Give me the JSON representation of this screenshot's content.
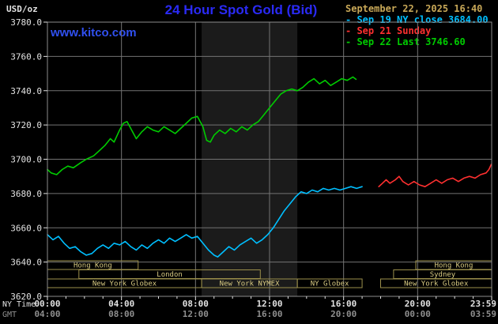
{
  "header": {
    "units": "USD/oz",
    "title": "24 Hour Spot Gold (Bid)",
    "website": "www.kitco.com",
    "datetime": "September 22, 2025 16:40"
  },
  "legend": [
    {
      "id": "sep19",
      "label": "- Sep 19 NY close 3684.00",
      "color": "#00bfff"
    },
    {
      "id": "sep21",
      "label": "- Sep 21 Sunday",
      "color": "#ff3030"
    },
    {
      "id": "sep22",
      "label": "- Sep 22 Last 3746.60",
      "color": "#00cc00"
    }
  ],
  "axes": {
    "ny_label": "NY Time",
    "gmt_label": "GMT",
    "tick_hours": [
      0,
      4,
      8,
      12,
      16,
      20,
      24
    ],
    "ny_ticks": [
      "00:00",
      "04:00",
      "08:00",
      "12:00",
      "16:00",
      "20:00",
      "23:59"
    ],
    "gmt_ticks": [
      "04:00",
      "08:00",
      "12:00",
      "16:00",
      "20:00",
      "00:00",
      "03:59"
    ]
  },
  "colors": {
    "background": "#000000",
    "grid": "#737373",
    "border": "#8c8c8c",
    "axis_text": "#e2e2e2",
    "gmt_text": "#8f8f8f",
    "band_fill": "#1b1b1b",
    "session_border": "#9b8f4b",
    "session_text": "#d8ca82",
    "title_blue": "#2a2af5",
    "kitco_blue": "#3050f0",
    "date_tan": "#c8a858"
  },
  "chart_data": {
    "type": "line",
    "title": "24 Hour Spot Gold (Bid)",
    "ylabel": "USD/oz",
    "ylim": [
      3620,
      3780
    ],
    "y_ticks": [
      3780,
      3760,
      3740,
      3720,
      3700,
      3680,
      3660,
      3640,
      3620
    ],
    "x_grid_hours": [
      4,
      8,
      12,
      16,
      20
    ],
    "highlight_band": {
      "start_hour": 8.33,
      "end_hour": 13.5
    },
    "series": [
      {
        "id": "sep19",
        "name": "Sep 19 NY close 3684.00",
        "color": "#00bfff",
        "points": [
          [
            0,
            3656
          ],
          [
            0.3,
            3653
          ],
          [
            0.6,
            3655
          ],
          [
            0.9,
            3651
          ],
          [
            1.2,
            3648
          ],
          [
            1.5,
            3649
          ],
          [
            1.8,
            3646
          ],
          [
            2.1,
            3644
          ],
          [
            2.4,
            3645
          ],
          [
            2.7,
            3648
          ],
          [
            3,
            3650
          ],
          [
            3.3,
            3648
          ],
          [
            3.6,
            3651
          ],
          [
            3.9,
            3650
          ],
          [
            4.2,
            3652
          ],
          [
            4.5,
            3649
          ],
          [
            4.8,
            3647
          ],
          [
            5.1,
            3650
          ],
          [
            5.4,
            3648
          ],
          [
            5.7,
            3651
          ],
          [
            6,
            3653
          ],
          [
            6.3,
            3651
          ],
          [
            6.6,
            3654
          ],
          [
            6.9,
            3652
          ],
          [
            7.2,
            3654
          ],
          [
            7.5,
            3656
          ],
          [
            7.8,
            3654
          ],
          [
            8.1,
            3655
          ],
          [
            8.4,
            3651
          ],
          [
            8.7,
            3647
          ],
          [
            9,
            3644
          ],
          [
            9.2,
            3643
          ],
          [
            9.5,
            3646
          ],
          [
            9.8,
            3649
          ],
          [
            10.1,
            3647
          ],
          [
            10.4,
            3650
          ],
          [
            10.7,
            3652
          ],
          [
            11,
            3654
          ],
          [
            11.3,
            3651
          ],
          [
            11.6,
            3653
          ],
          [
            11.9,
            3656
          ],
          [
            12.2,
            3660
          ],
          [
            12.5,
            3665
          ],
          [
            12.8,
            3670
          ],
          [
            13.1,
            3674
          ],
          [
            13.4,
            3678
          ],
          [
            13.7,
            3681
          ],
          [
            14,
            3680
          ],
          [
            14.3,
            3682
          ],
          [
            14.6,
            3681
          ],
          [
            14.9,
            3683
          ],
          [
            15.2,
            3682
          ],
          [
            15.5,
            3683
          ],
          [
            15.8,
            3682
          ],
          [
            16.1,
            3683
          ],
          [
            16.4,
            3684
          ],
          [
            16.7,
            3683
          ],
          [
            17,
            3684
          ]
        ]
      },
      {
        "id": "sep21",
        "name": "Sep 21 Sunday",
        "color": "#ff3030",
        "points": [
          [
            17.9,
            3684
          ],
          [
            18.1,
            3686
          ],
          [
            18.3,
            3688
          ],
          [
            18.5,
            3686
          ],
          [
            18.8,
            3688
          ],
          [
            19,
            3690
          ],
          [
            19.2,
            3687
          ],
          [
            19.5,
            3685
          ],
          [
            19.8,
            3687
          ],
          [
            20.1,
            3685
          ],
          [
            20.4,
            3684
          ],
          [
            20.7,
            3686
          ],
          [
            21,
            3688
          ],
          [
            21.3,
            3686
          ],
          [
            21.6,
            3688
          ],
          [
            21.9,
            3689
          ],
          [
            22.2,
            3687
          ],
          [
            22.5,
            3689
          ],
          [
            22.8,
            3690
          ],
          [
            23.1,
            3689
          ],
          [
            23.4,
            3691
          ],
          [
            23.7,
            3692
          ],
          [
            23.85,
            3694
          ],
          [
            23.98,
            3697
          ]
        ]
      },
      {
        "id": "sep22",
        "name": "Sep 22 Last 3746.60",
        "color": "#00cc00",
        "points": [
          [
            0,
            3694
          ],
          [
            0.2,
            3692
          ],
          [
            0.5,
            3691
          ],
          [
            0.8,
            3694
          ],
          [
            1.1,
            3696
          ],
          [
            1.4,
            3695
          ],
          [
            1.8,
            3698
          ],
          [
            2.1,
            3700
          ],
          [
            2.5,
            3702
          ],
          [
            2.8,
            3705
          ],
          [
            3.1,
            3708
          ],
          [
            3.4,
            3712
          ],
          [
            3.6,
            3710
          ],
          [
            3.9,
            3717
          ],
          [
            4.1,
            3721
          ],
          [
            4.3,
            3722
          ],
          [
            4.6,
            3716
          ],
          [
            4.8,
            3712
          ],
          [
            5.1,
            3716
          ],
          [
            5.4,
            3719
          ],
          [
            5.7,
            3717
          ],
          [
            6,
            3716
          ],
          [
            6.3,
            3719
          ],
          [
            6.6,
            3717
          ],
          [
            6.9,
            3715
          ],
          [
            7.2,
            3718
          ],
          [
            7.5,
            3721
          ],
          [
            7.8,
            3724
          ],
          [
            8.1,
            3725
          ],
          [
            8.4,
            3719
          ],
          [
            8.6,
            3711
          ],
          [
            8.8,
            3710
          ],
          [
            9,
            3714
          ],
          [
            9.3,
            3717
          ],
          [
            9.6,
            3715
          ],
          [
            9.9,
            3718
          ],
          [
            10.2,
            3716
          ],
          [
            10.5,
            3719
          ],
          [
            10.8,
            3717
          ],
          [
            11.1,
            3720
          ],
          [
            11.4,
            3722
          ],
          [
            11.7,
            3726
          ],
          [
            12,
            3730
          ],
          [
            12.3,
            3734
          ],
          [
            12.6,
            3738
          ],
          [
            12.9,
            3740
          ],
          [
            13.2,
            3741
          ],
          [
            13.5,
            3740
          ],
          [
            13.8,
            3742
          ],
          [
            14.1,
            3745
          ],
          [
            14.4,
            3747
          ],
          [
            14.7,
            3744
          ],
          [
            15,
            3746
          ],
          [
            15.3,
            3743
          ],
          [
            15.6,
            3745
          ],
          [
            15.9,
            3747
          ],
          [
            16.2,
            3746
          ],
          [
            16.5,
            3748
          ],
          [
            16.67,
            3746.6
          ]
        ]
      }
    ],
    "sessions": [
      {
        "row": 0,
        "start_hour": 0,
        "end_hour": 4.9,
        "label": "Hong Kong"
      },
      {
        "row": 0,
        "start_hour": 19.9,
        "end_hour": 24,
        "label": "Hong Kong"
      },
      {
        "row": 1,
        "start_hour": 1.7,
        "end_hour": 11.5,
        "label": "London"
      },
      {
        "row": 1,
        "start_hour": 18.7,
        "end_hour": 24,
        "label": "Sydney"
      },
      {
        "row": 2,
        "start_hour": 0,
        "end_hour": 8.33,
        "label": "New York Globex"
      },
      {
        "row": 2,
        "start_hour": 8.33,
        "end_hour": 13.5,
        "label": "New York NYMEX"
      },
      {
        "row": 2,
        "start_hour": 13.5,
        "end_hour": 17,
        "label": "NY Globex"
      },
      {
        "row": 2,
        "start_hour": 18,
        "end_hour": 24,
        "label": "New York Globex"
      }
    ]
  }
}
